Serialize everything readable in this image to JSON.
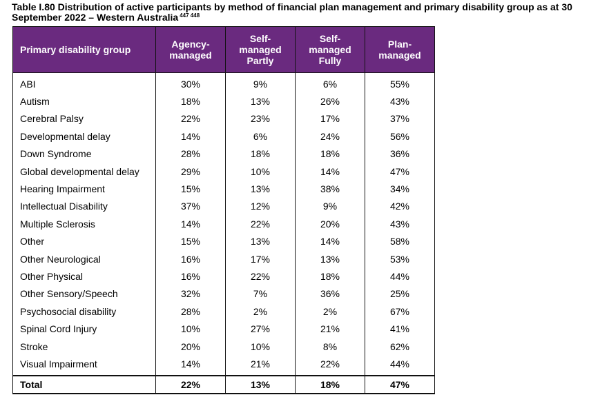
{
  "caption": {
    "title": "Table I.80 Distribution of active participants by method of financial plan management and primary disability group as at 30 September 2022 – Western Australia",
    "footnotes": "447 448"
  },
  "table": {
    "headers": [
      "Primary disability group",
      "Agency-managed",
      "Self-managed Partly",
      "Self-managed Fully",
      "Plan-managed"
    ],
    "rows": [
      [
        "ABI",
        "30%",
        "9%",
        "6%",
        "55%"
      ],
      [
        "Autism",
        "18%",
        "13%",
        "26%",
        "43%"
      ],
      [
        "Cerebral Palsy",
        "22%",
        "23%",
        "17%",
        "37%"
      ],
      [
        "Developmental delay",
        "14%",
        "6%",
        "24%",
        "56%"
      ],
      [
        "Down Syndrome",
        "28%",
        "18%",
        "18%",
        "36%"
      ],
      [
        "Global developmental delay",
        "29%",
        "10%",
        "14%",
        "47%"
      ],
      [
        "Hearing Impairment",
        "15%",
        "13%",
        "38%",
        "34%"
      ],
      [
        "Intellectual Disability",
        "37%",
        "12%",
        "9%",
        "42%"
      ],
      [
        "Multiple Sclerosis",
        "14%",
        "22%",
        "20%",
        "43%"
      ],
      [
        "Other",
        "15%",
        "13%",
        "14%",
        "58%"
      ],
      [
        "Other Neurological",
        "16%",
        "17%",
        "13%",
        "53%"
      ],
      [
        "Other Physical",
        "16%",
        "22%",
        "18%",
        "44%"
      ],
      [
        "Other Sensory/Speech",
        "32%",
        "7%",
        "36%",
        "25%"
      ],
      [
        "Psychosocial disability",
        "28%",
        "2%",
        "2%",
        "67%"
      ],
      [
        "Spinal Cord Injury",
        "10%",
        "27%",
        "21%",
        "41%"
      ],
      [
        "Stroke",
        "20%",
        "10%",
        "8%",
        "62%"
      ],
      [
        "Visual Impairment",
        "14%",
        "21%",
        "22%",
        "44%"
      ]
    ],
    "total": [
      "Total",
      "22%",
      "13%",
      "18%",
      "47%"
    ]
  },
  "colors": {
    "header_background": "#6a2a7f",
    "header_text": "#ffffff",
    "border": "#111111"
  }
}
